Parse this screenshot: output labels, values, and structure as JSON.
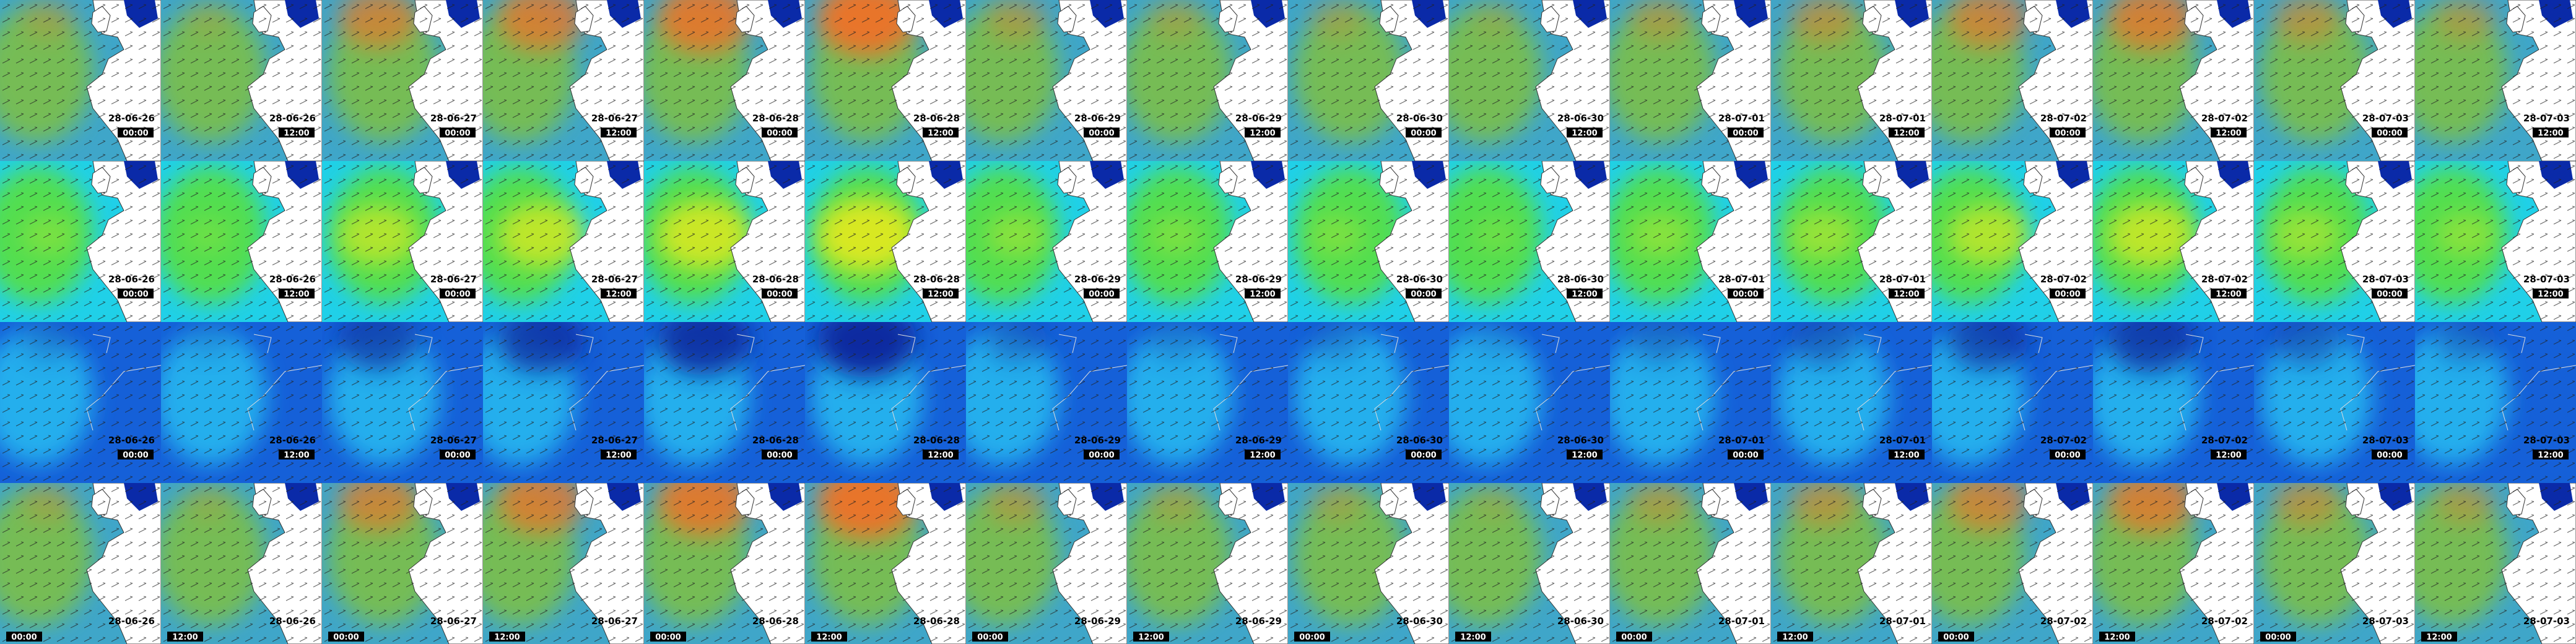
{
  "frames": [
    {
      "date": "28-06-26",
      "time": "00:00"
    },
    {
      "date": "28-06-26",
      "time": "12:00"
    },
    {
      "date": "28-06-27",
      "time": "00:00"
    },
    {
      "date": "28-06-27",
      "time": "12:00"
    },
    {
      "date": "28-06-28",
      "time": "00:00"
    },
    {
      "date": "28-06-28",
      "time": "12:00"
    },
    {
      "date": "28-06-29",
      "time": "00:00"
    },
    {
      "date": "28-06-29",
      "time": "12:00"
    },
    {
      "date": "28-06-30",
      "time": "00:00"
    },
    {
      "date": "28-06-30",
      "time": "12:00"
    },
    {
      "date": "28-07-01",
      "time": "00:00"
    },
    {
      "date": "28-07-01",
      "time": "12:00"
    },
    {
      "date": "28-07-02",
      "time": "00:00"
    },
    {
      "date": "28-07-02",
      "time": "12:00"
    },
    {
      "date": "28-07-03",
      "time": "00:00"
    },
    {
      "date": "28-07-03",
      "time": "12:00"
    }
  ]
}
